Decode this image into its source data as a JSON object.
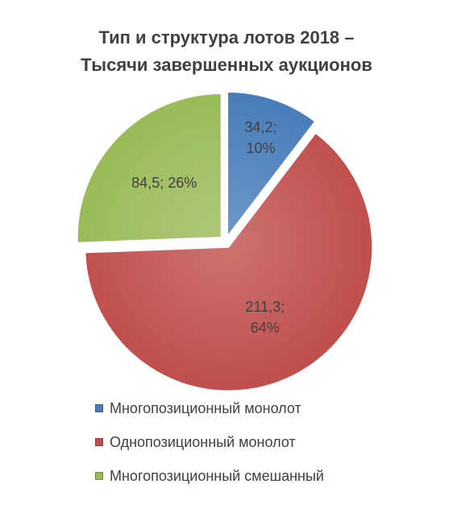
{
  "chart_data": {
    "type": "pie",
    "title": "Тип и структура лотов 2018 – Тысячи завершенных аукционов",
    "categories": [
      "Многопозиционный монолот",
      "Однопозиционный монолот",
      "Многопозиционный смешанный"
    ],
    "values": [
      34.2,
      211.3,
      84.5
    ],
    "value_labels": [
      "34,2; 10%",
      "211,3; 64%",
      "84,5; 26%"
    ],
    "colors": [
      "#4a7ebb",
      "#c0504d",
      "#9bbb59"
    ],
    "legend": "bottom"
  }
}
